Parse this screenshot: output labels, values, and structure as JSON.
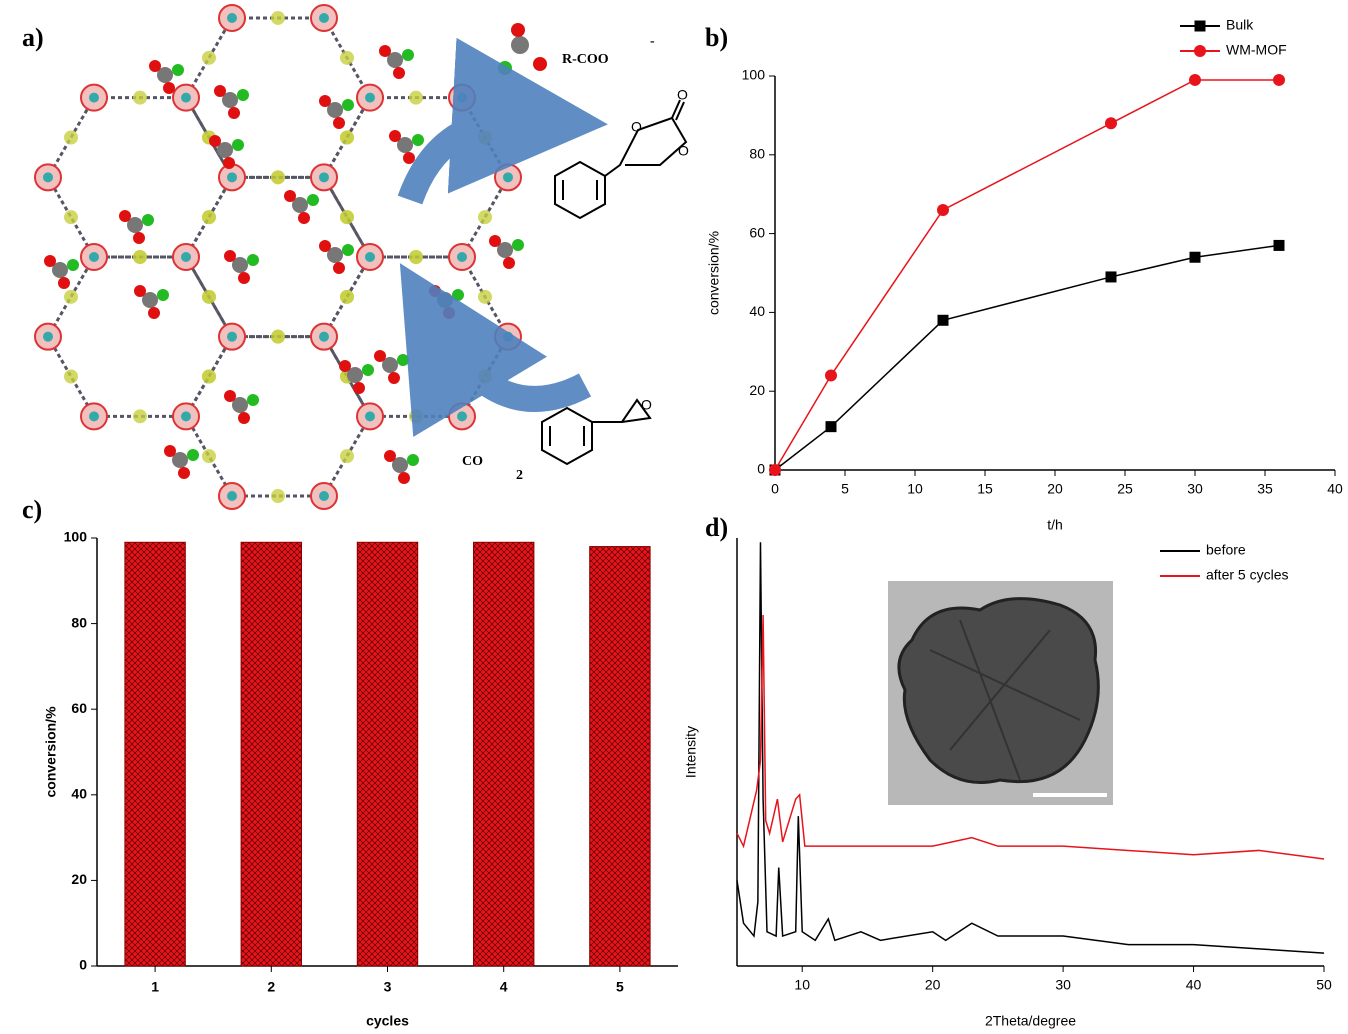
{
  "diagram": {
    "label": "a)",
    "anion_label": "R-COO",
    "anion_charge": "-",
    "gas_label": "CO",
    "gas_subscript": "2",
    "carbonate_atoms": [
      "O",
      "O",
      "O"
    ],
    "epoxide_atom": "O"
  },
  "chart_data": [
    {
      "type": "line",
      "label": "b)",
      "x_label": "t/h",
      "y_label": "conversion/%",
      "x": [
        0,
        4,
        12,
        24,
        30,
        36
      ],
      "series": [
        {
          "name": "Bulk",
          "color": "#000000",
          "marker": "square",
          "values": [
            0,
            11,
            38,
            49,
            54,
            57
          ]
        },
        {
          "name": "WM-MOF",
          "color": "#e8141b",
          "marker": "circle",
          "values": [
            0,
            24,
            66,
            88,
            99,
            99
          ]
        }
      ],
      "xlim": [
        0,
        40
      ],
      "xticks": [
        0,
        5,
        10,
        15,
        20,
        25,
        30,
        35,
        40
      ],
      "ylim": [
        0,
        100
      ],
      "yticks": [
        0,
        20,
        40,
        60,
        80,
        100
      ],
      "legend": "top-right"
    },
    {
      "type": "bar",
      "label": "c)",
      "x_label": "cycles",
      "y_label": "conversion/%",
      "categories": [
        "1",
        "2",
        "3",
        "4",
        "5"
      ],
      "values": [
        99,
        99,
        99,
        99,
        98
      ],
      "color": "#e8141b",
      "ylim": [
        0,
        100
      ],
      "yticks": [
        0,
        20,
        40,
        60,
        80,
        100
      ]
    },
    {
      "type": "line",
      "label": "d)",
      "x_label": "2Theta/degree",
      "y_label": "Intensity",
      "series": [
        {
          "name": "before",
          "color": "#000000",
          "x": [
            5,
            5.5,
            6.3,
            6.6,
            6.8,
            7.0,
            7.3,
            8.0,
            8.2,
            8.5,
            9.5,
            9.7,
            10.0,
            11,
            12,
            12.5,
            14.5,
            16,
            20,
            21,
            23,
            25,
            30,
            35,
            40,
            45,
            50
          ],
          "values": [
            20,
            10,
            7,
            15,
            99,
            39,
            8,
            7,
            23,
            7,
            8,
            35,
            8,
            6,
            11,
            6,
            8,
            6,
            8,
            6,
            10,
            7,
            7,
            5,
            5,
            4,
            3
          ]
        },
        {
          "name": "after 5 cycles",
          "color": "#e8141b",
          "x": [
            5,
            5.5,
            6.5,
            6.8,
            7.0,
            7.2,
            7.5,
            8.1,
            8.5,
            9.5,
            9.8,
            10.2,
            15,
            20,
            23,
            25,
            30,
            35,
            40,
            45,
            50
          ],
          "values": [
            31,
            28,
            41,
            48,
            82,
            34,
            31,
            39,
            29,
            39,
            40,
            28,
            28,
            28,
            30,
            28,
            28,
            27,
            26,
            27,
            25
          ]
        }
      ],
      "xlim": [
        5,
        50
      ],
      "xticks": [
        10,
        20,
        30,
        40,
        50
      ],
      "ylim": [
        0,
        100
      ],
      "legend": "top-right"
    }
  ]
}
